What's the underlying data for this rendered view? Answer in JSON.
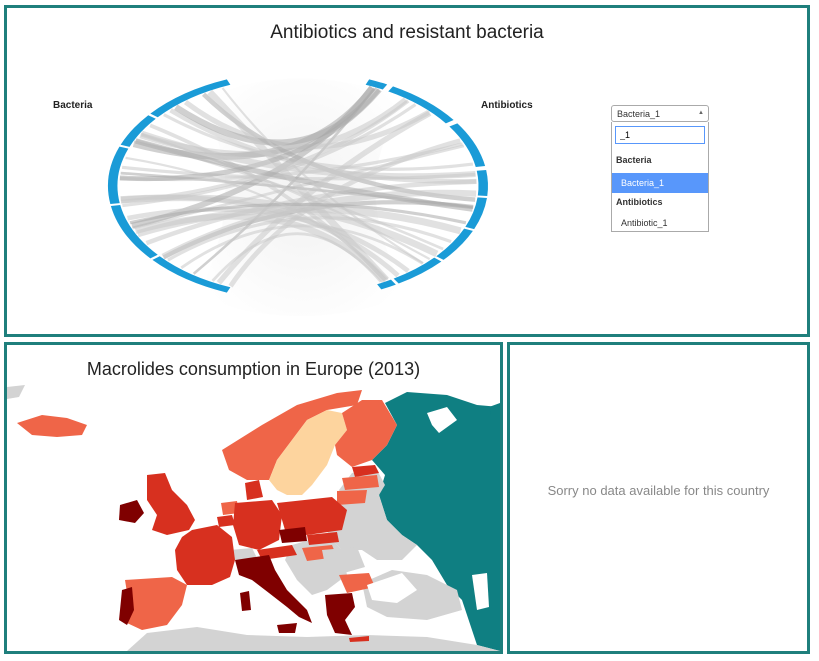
{
  "chord_panel": {
    "title": "Antibiotics and resistant bacteria",
    "left_label": "Bacteria",
    "right_label": "Antibiotics",
    "arc_color": "#1a9bd7",
    "select": {
      "value": "Bacteria_1",
      "search_value": "_1",
      "groups": [
        {
          "label": "Bacteria",
          "options": [
            "Bacteria_1"
          ]
        },
        {
          "label": "Antibiotics",
          "options": [
            "Antibiotic_1"
          ]
        }
      ],
      "highlight_color": "#5897fb"
    }
  },
  "map_panel": {
    "title": "Macrolides consumption in Europe (2013)",
    "colors": {
      "no_data": "#d3d3d3",
      "russia": "#0f7f82",
      "low": "#fdd49e",
      "mid": "#ef6548",
      "high": "#d7301f",
      "very_high": "#7f0000"
    }
  },
  "info_panel": {
    "message": "Sorry no data available for this country"
  },
  "theme": {
    "panel_border": "#1f7f7c"
  }
}
